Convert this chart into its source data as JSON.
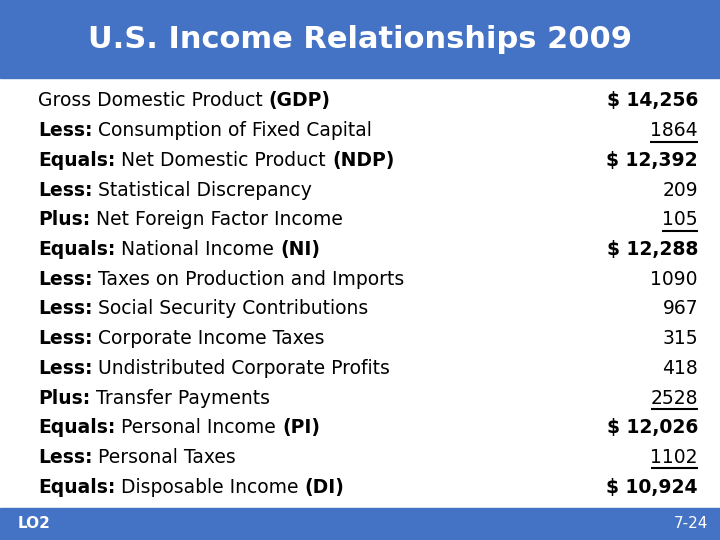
{
  "title": "U.S. Income Relationships 2009",
  "title_bg_color": "#4472C4",
  "title_text_color": "#FFFFFF",
  "bg_color": "#FFFFFF",
  "footer_bg_color": "#4472C4",
  "footer_left": "LO2",
  "footer_right": "7-24",
  "rows": [
    {
      "label_parts": [
        {
          "text": "Gross Domestic Product ",
          "bold": false
        },
        {
          "text": "(GDP)",
          "bold": true
        }
      ],
      "value": "$ 14,256",
      "underline": false,
      "is_total": true
    },
    {
      "label_parts": [
        {
          "text": "Less:",
          "bold": true
        },
        {
          "text": " Consumption of Fixed Capital",
          "bold": false
        }
      ],
      "value": "1864",
      "underline": true,
      "is_total": false
    },
    {
      "label_parts": [
        {
          "text": "Equals:",
          "bold": true
        },
        {
          "text": " Net Domestic Product ",
          "bold": false
        },
        {
          "text": "(NDP)",
          "bold": true
        }
      ],
      "value": "$ 12,392",
      "underline": false,
      "is_total": true
    },
    {
      "label_parts": [
        {
          "text": "Less:",
          "bold": true
        },
        {
          "text": " Statistical Discrepancy",
          "bold": false
        }
      ],
      "value": "209",
      "underline": false,
      "is_total": false
    },
    {
      "label_parts": [
        {
          "text": "Plus:",
          "bold": true
        },
        {
          "text": " Net Foreign Factor Income",
          "bold": false
        }
      ],
      "value": "105",
      "underline": true,
      "is_total": false
    },
    {
      "label_parts": [
        {
          "text": "Equals:",
          "bold": true
        },
        {
          "text": " National Income ",
          "bold": false
        },
        {
          "text": "(NI)",
          "bold": true
        }
      ],
      "value": "$ 12,288",
      "underline": false,
      "is_total": true
    },
    {
      "label_parts": [
        {
          "text": "Less:",
          "bold": true
        },
        {
          "text": " Taxes on Production and Imports",
          "bold": false
        }
      ],
      "value": "1090",
      "underline": false,
      "is_total": false
    },
    {
      "label_parts": [
        {
          "text": "Less:",
          "bold": true
        },
        {
          "text": " Social Security Contributions",
          "bold": false
        }
      ],
      "value": "967",
      "underline": false,
      "is_total": false
    },
    {
      "label_parts": [
        {
          "text": "Less:",
          "bold": true
        },
        {
          "text": " Corporate Income Taxes",
          "bold": false
        }
      ],
      "value": "315",
      "underline": false,
      "is_total": false
    },
    {
      "label_parts": [
        {
          "text": "Less:",
          "bold": true
        },
        {
          "text": " Undistributed Corporate Profits",
          "bold": false
        }
      ],
      "value": "418",
      "underline": false,
      "is_total": false
    },
    {
      "label_parts": [
        {
          "text": "Plus:",
          "bold": true
        },
        {
          "text": " Transfer Payments",
          "bold": false
        }
      ],
      "value": "2528",
      "underline": true,
      "is_total": false
    },
    {
      "label_parts": [
        {
          "text": "Equals:",
          "bold": true
        },
        {
          "text": " Personal Income ",
          "bold": false
        },
        {
          "text": "(PI)",
          "bold": true
        }
      ],
      "value": "$ 12,026",
      "underline": false,
      "is_total": true
    },
    {
      "label_parts": [
        {
          "text": "Less:",
          "bold": true
        },
        {
          "text": " Personal Taxes",
          "bold": false
        }
      ],
      "value": "1102",
      "underline": true,
      "is_total": false
    },
    {
      "label_parts": [
        {
          "text": "Equals:",
          "bold": true
        },
        {
          "text": " Disposable Income ",
          "bold": false
        },
        {
          "text": "(DI)",
          "bold": true
        }
      ],
      "value": "$ 10,924",
      "underline": false,
      "is_total": true
    }
  ],
  "font_size": 13.5,
  "title_font_size": 22,
  "footer_font_size": 11
}
